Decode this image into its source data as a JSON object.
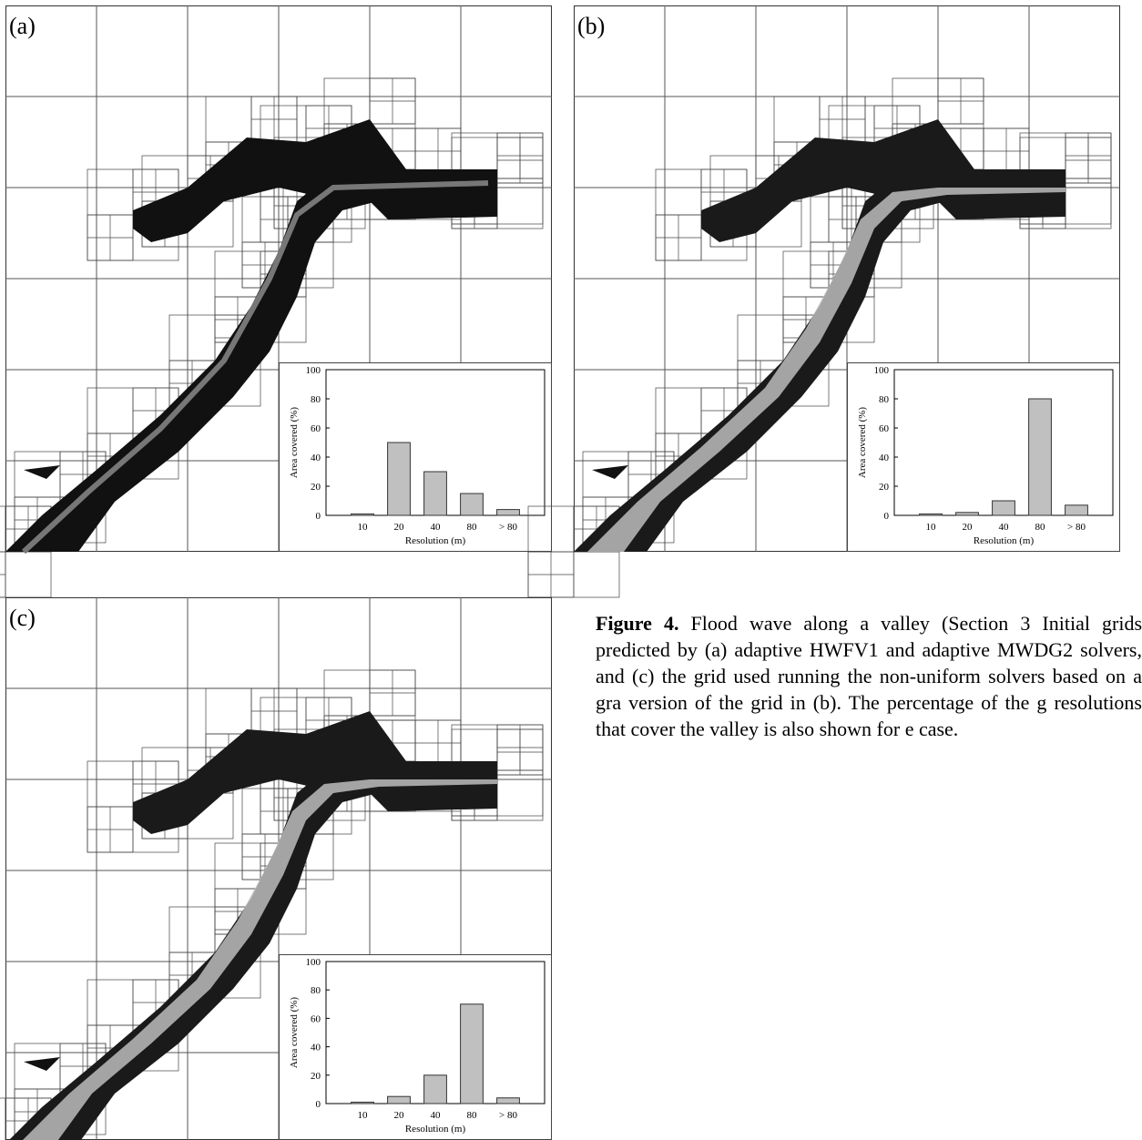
{
  "panels": [
    {
      "label": "(a)",
      "chart_data": {
        "type": "bar",
        "categories": [
          "10",
          "20",
          "40",
          "80",
          "> 80"
        ],
        "values": [
          1,
          50,
          30,
          15,
          4
        ],
        "xlabel": "Resolution (m)",
        "ylabel": "Area covered (%)",
        "ylim": [
          0,
          100
        ],
        "yticks": [
          0,
          20,
          40,
          60,
          80,
          100
        ]
      }
    },
    {
      "label": "(b)",
      "chart_data": {
        "type": "bar",
        "categories": [
          "10",
          "20",
          "40",
          "80",
          "> 80"
        ],
        "values": [
          1,
          2,
          10,
          80,
          7
        ],
        "xlabel": "Resolution (m)",
        "ylabel": "Area covered (%)",
        "ylim": [
          0,
          100
        ],
        "yticks": [
          0,
          20,
          40,
          60,
          80,
          100
        ]
      }
    },
    {
      "label": "(c)",
      "chart_data": {
        "type": "bar",
        "categories": [
          "10",
          "20",
          "40",
          "80",
          "> 80"
        ],
        "values": [
          1,
          5,
          20,
          70,
          4
        ],
        "xlabel": "Resolution (m)",
        "ylabel": "Area covered (%)",
        "ylim": [
          0,
          100
        ],
        "yticks": [
          0,
          20,
          40,
          60,
          80,
          100
        ]
      }
    }
  ],
  "caption": {
    "bold": "Figure 4.",
    "text": " Flood wave along a valley (Section 3 Initial grids predicted by (a) adaptive HWFV1 and adaptive MWDG2 solvers, and (c) the grid used running the non-uniform solvers based on a gra version of the grid in (b). The percentage of the g resolutions that cover the valley is also shown for e case."
  },
  "colors": {
    "bar_fill": "#c0c0c0",
    "valley": "#111111",
    "grid_line": "#333333"
  }
}
